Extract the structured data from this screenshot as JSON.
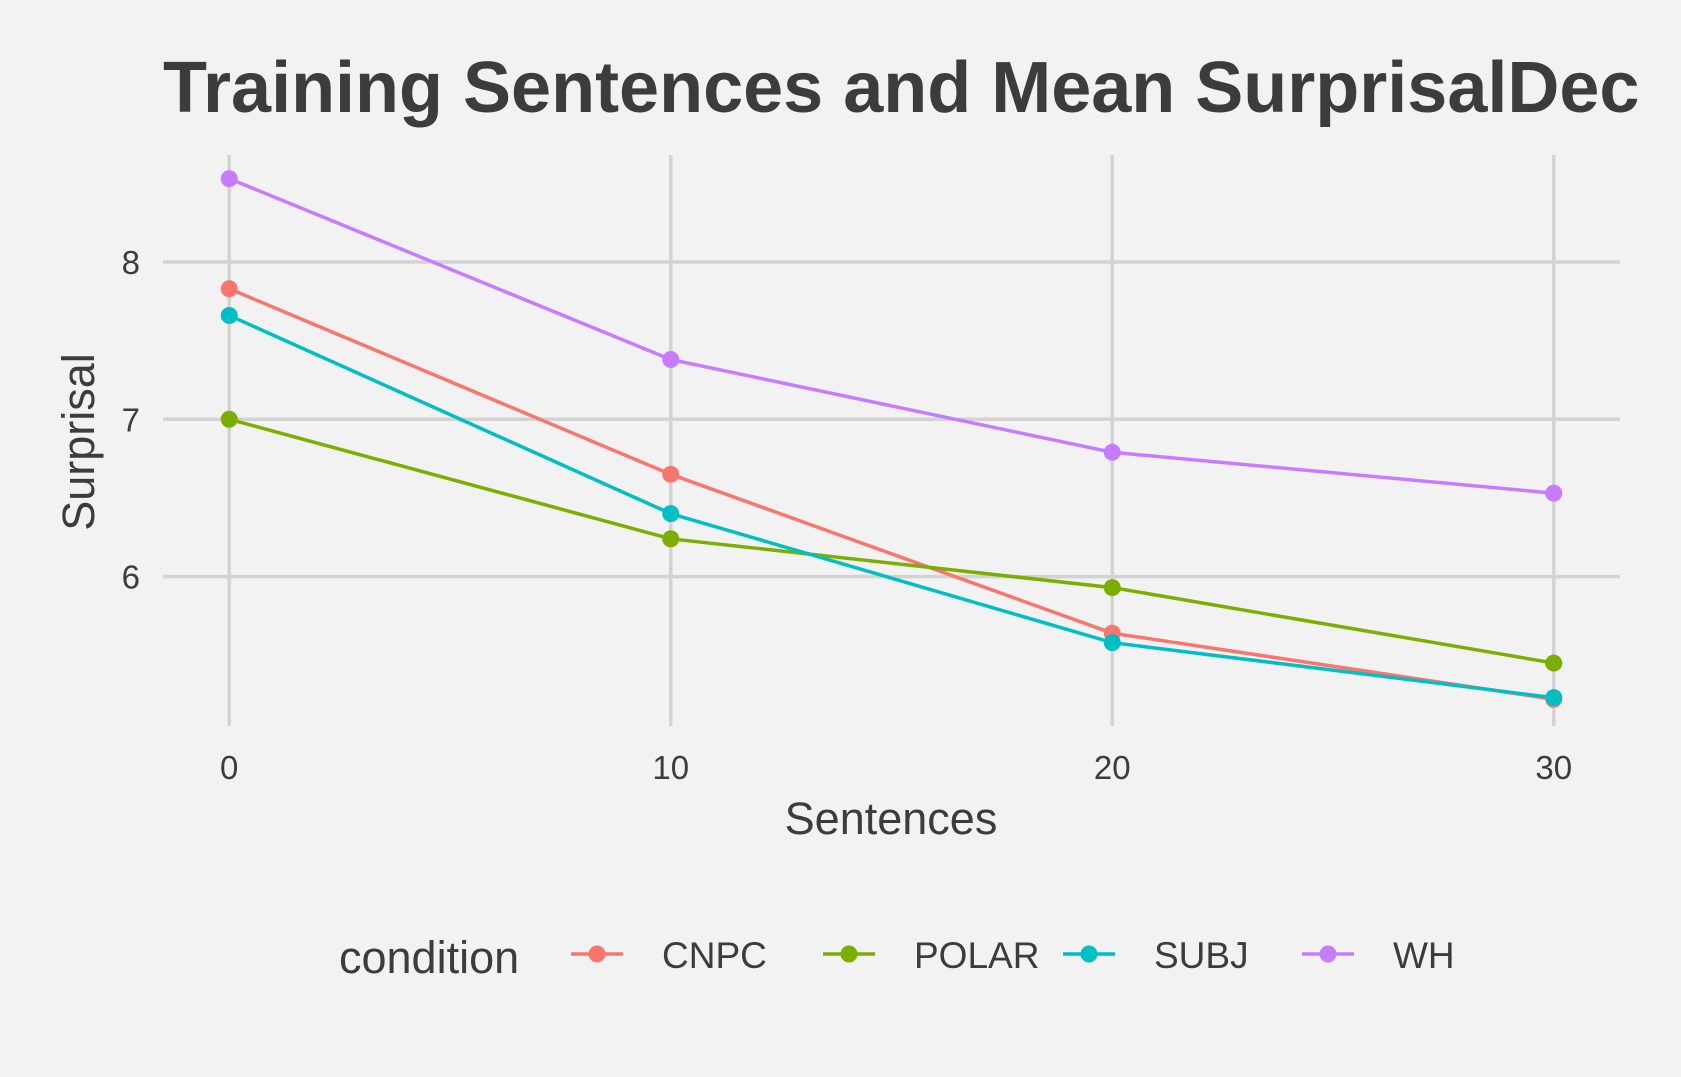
{
  "chart_data": {
    "type": "line",
    "title": "Training Sentences and Mean SurprisalDec",
    "xlabel": "Sentences",
    "ylabel": "Surprisal",
    "x": [
      0,
      10,
      20,
      30
    ],
    "x_ticks": [
      "0",
      "10",
      "20",
      "30"
    ],
    "y_ticks": [
      "6",
      "7",
      "8"
    ],
    "xlim": [
      -1.5,
      31.5
    ],
    "ylim": [
      5.05,
      8.68
    ],
    "grid": true,
    "legend": {
      "title": "condition",
      "placement": "bottom"
    },
    "series": [
      {
        "name": "CNPC",
        "color": "#F8766D",
        "values": [
          7.83,
          6.65,
          5.64,
          5.22
        ]
      },
      {
        "name": "POLAR",
        "color": "#7CAE00",
        "values": [
          7.0,
          6.24,
          5.93,
          5.45
        ]
      },
      {
        "name": "SUBJ",
        "color": "#00BFC4",
        "values": [
          7.66,
          6.4,
          5.58,
          5.23
        ]
      },
      {
        "name": "WH",
        "color": "#C77CFF",
        "values": [
          8.53,
          7.38,
          6.79,
          6.53
        ]
      }
    ]
  }
}
